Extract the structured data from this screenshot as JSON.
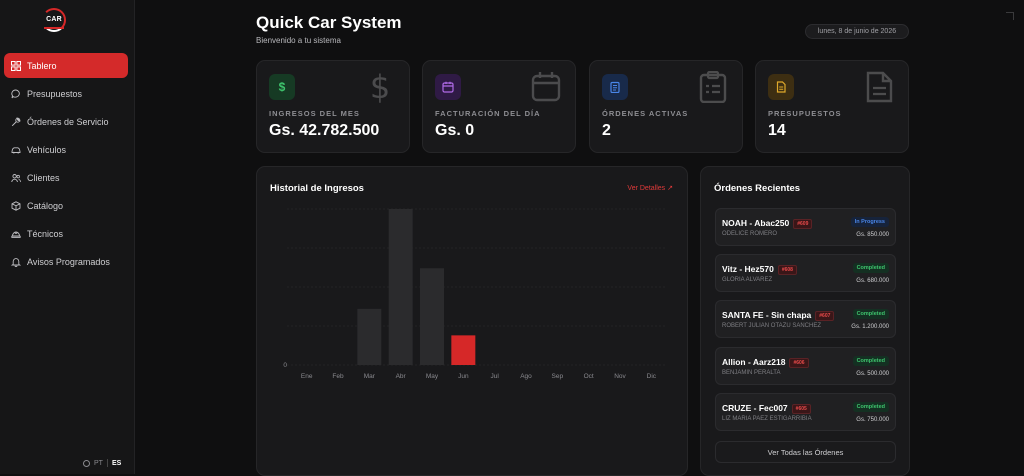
{
  "app": {
    "logo_text": "CAR"
  },
  "sidebar": {
    "items": [
      {
        "label": "Tablero",
        "icon": "grid-icon",
        "active": true
      },
      {
        "label": "Presupuestos",
        "icon": "chat-icon",
        "active": false
      },
      {
        "label": "Órdenes de Servicio",
        "icon": "wrench-icon",
        "active": false
      },
      {
        "label": "Vehículos",
        "icon": "car-icon",
        "active": false
      },
      {
        "label": "Clientes",
        "icon": "users-icon",
        "active": false
      },
      {
        "label": "Catálogo",
        "icon": "box-icon",
        "active": false
      },
      {
        "label": "Técnicos",
        "icon": "hardhat-icon",
        "active": false
      },
      {
        "label": "Avisos Programados",
        "icon": "bell-icon",
        "active": false
      }
    ],
    "lang": {
      "pt": "PT",
      "es": "ES"
    }
  },
  "header": {
    "title": "Quick Car System",
    "subtitle": "Bienvenido a tu sistema",
    "date": "lunes, 8 de junio de 2026"
  },
  "stats": [
    {
      "label": "INGRESOS DEL MES",
      "value": "Gs. 42.782.500",
      "icon": "dollar-icon",
      "symbol": "$",
      "color": "#3ec46d",
      "bg": "#163a24"
    },
    {
      "label": "FACTURACIÓN DEL DÍA",
      "value": "Gs. 0",
      "icon": "calendar-icon",
      "symbol": "▦",
      "color": "#b06be8",
      "bg": "#2f1a45"
    },
    {
      "label": "ÓRDENES ACTIVAS",
      "value": "2",
      "icon": "clipboard-icon",
      "symbol": "▤",
      "color": "#4a86e8",
      "bg": "#182a4a"
    },
    {
      "label": "PRESUPUESTOS",
      "value": "14",
      "icon": "document-icon",
      "symbol": "▥",
      "color": "#e0a92b",
      "bg": "#3d2e12"
    }
  ],
  "chart_panel": {
    "title": "Historial de Ingresos",
    "details_label": "Ver Detalles",
    "details_icon": "arrow-up-right-icon"
  },
  "chart_data": {
    "type": "bar",
    "title": "Historial de Ingresos",
    "categories": [
      "Ene",
      "Feb",
      "Mar",
      "Abr",
      "May",
      "Jun",
      "Jul",
      "Ago",
      "Sep",
      "Oct",
      "Nov",
      "Dic"
    ],
    "values": [
      0,
      0,
      36,
      100,
      62,
      19,
      0,
      0,
      0,
      0,
      0,
      0
    ],
    "y_tick_labels": [
      "0"
    ],
    "ylim": [
      0,
      100
    ],
    "highlight_index": 5,
    "bar_color": "#2b2b2d",
    "highlight_color": "#d62828",
    "grid": true,
    "value_note": "relative bar heights; no scale printed"
  },
  "orders_panel": {
    "title": "Órdenes Recientes",
    "view_all_label": "Ver Todas las Órdenes",
    "orders": [
      {
        "name": "NOAH - Abac250",
        "code": "#609",
        "client": "ODELICE ROMERO",
        "status": "In Progress",
        "status_type": "progress",
        "amount": "Gs. 850.000"
      },
      {
        "name": "Vitz - Hez570",
        "code": "#608",
        "client": "GLORIA ALVAREZ",
        "status": "Completed",
        "status_type": "done",
        "amount": "Gs. 680.000"
      },
      {
        "name": "SANTA FE - Sin chapa",
        "code": "#607",
        "client": "ROBERT JULIAN OTAZU SANCHEZ",
        "status": "Completed",
        "status_type": "done",
        "amount": "Gs. 1.200.000"
      },
      {
        "name": "Allion - Aarz218",
        "code": "#606",
        "client": "BENJAMIN PERALTA",
        "status": "Completed",
        "status_type": "done",
        "amount": "Gs. 500.000"
      },
      {
        "name": "CRUZE - Fec007",
        "code": "#605",
        "client": "LIZ MARIA PAEZ ESTIGARRIBIA",
        "status": "Completed",
        "status_type": "done",
        "amount": "Gs. 750.000"
      }
    ]
  }
}
